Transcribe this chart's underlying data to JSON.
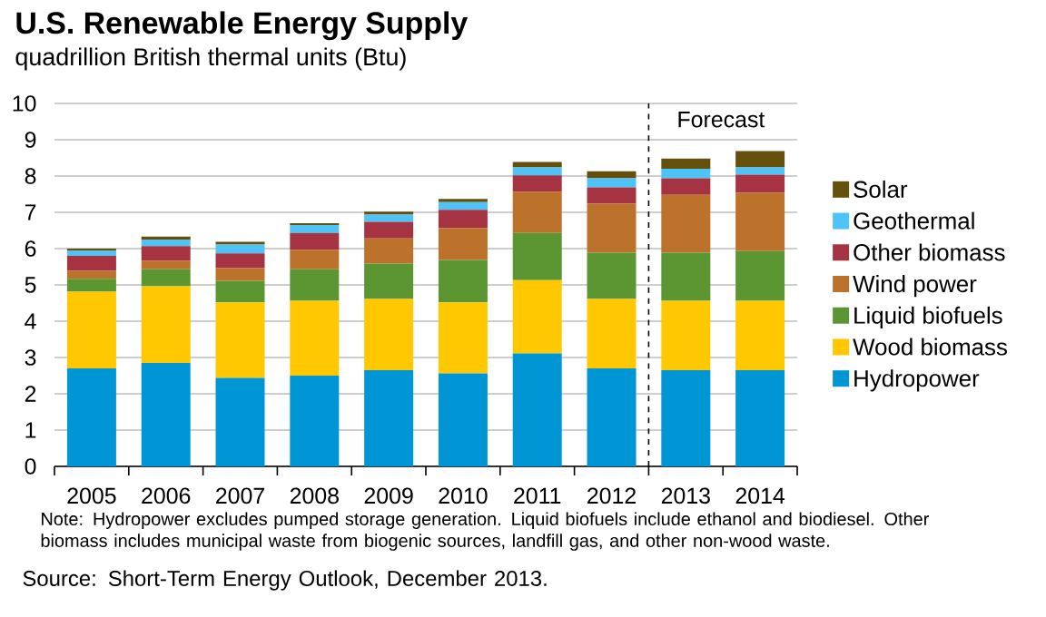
{
  "chart_data": {
    "type": "bar",
    "stacked": true,
    "title": "U.S. Renewable Energy Supply",
    "subtitle": "quadrillion British thermal units (Btu)",
    "categories": [
      "2005",
      "2006",
      "2007",
      "2008",
      "2009",
      "2010",
      "2011",
      "2012",
      "2013",
      "2014"
    ],
    "series": [
      {
        "name": "Hydropower",
        "color": "#0096d6",
        "values": [
          2.7,
          2.85,
          2.44,
          2.5,
          2.65,
          2.56,
          3.11,
          2.7,
          2.65,
          2.65
        ]
      },
      {
        "name": "Wood biomass",
        "color": "#ffc800",
        "values": [
          2.11,
          2.11,
          2.08,
          2.06,
          1.96,
          1.96,
          2.02,
          1.91,
          1.91,
          1.91
        ]
      },
      {
        "name": "Liquid biofuels",
        "color": "#5b9632",
        "values": [
          0.36,
          0.47,
          0.59,
          0.87,
          0.98,
          1.17,
          1.3,
          1.28,
          1.33,
          1.37
        ]
      },
      {
        "name": "Wind power",
        "color": "#bd722b",
        "values": [
          0.22,
          0.24,
          0.35,
          0.53,
          0.69,
          0.88,
          1.14,
          1.35,
          1.59,
          1.61
        ]
      },
      {
        "name": "Other biomass",
        "color": "#a53342",
        "values": [
          0.41,
          0.4,
          0.41,
          0.47,
          0.46,
          0.5,
          0.45,
          0.45,
          0.46,
          0.5
        ]
      },
      {
        "name": "Geothermal",
        "color": "#4dc3f7",
        "values": [
          0.14,
          0.17,
          0.24,
          0.22,
          0.2,
          0.21,
          0.22,
          0.25,
          0.26,
          0.2
        ]
      },
      {
        "name": "Solar",
        "color": "#654f0c",
        "values": [
          0.06,
          0.09,
          0.08,
          0.05,
          0.08,
          0.09,
          0.15,
          0.19,
          0.28,
          0.45
        ]
      }
    ],
    "ylim": [
      0,
      10
    ],
    "yticks": [
      0,
      1,
      2,
      3,
      4,
      5,
      6,
      7,
      8,
      9,
      10
    ],
    "grid": "y",
    "legend": "right",
    "ref_lines": [
      {
        "axis": "x",
        "value": "2013",
        "label": "Forecast",
        "line_style": "dashed"
      }
    ],
    "annotations": [
      "Note: Hydropower excludes pumped storage generation.  Liquid biofuels include ethanol and biodiesel.  Other biomass includes municipal waste from biogenic sources, landfill gas, and other non-wood waste.",
      "Source: Short-Term Energy Outlook, December 2013."
    ]
  }
}
